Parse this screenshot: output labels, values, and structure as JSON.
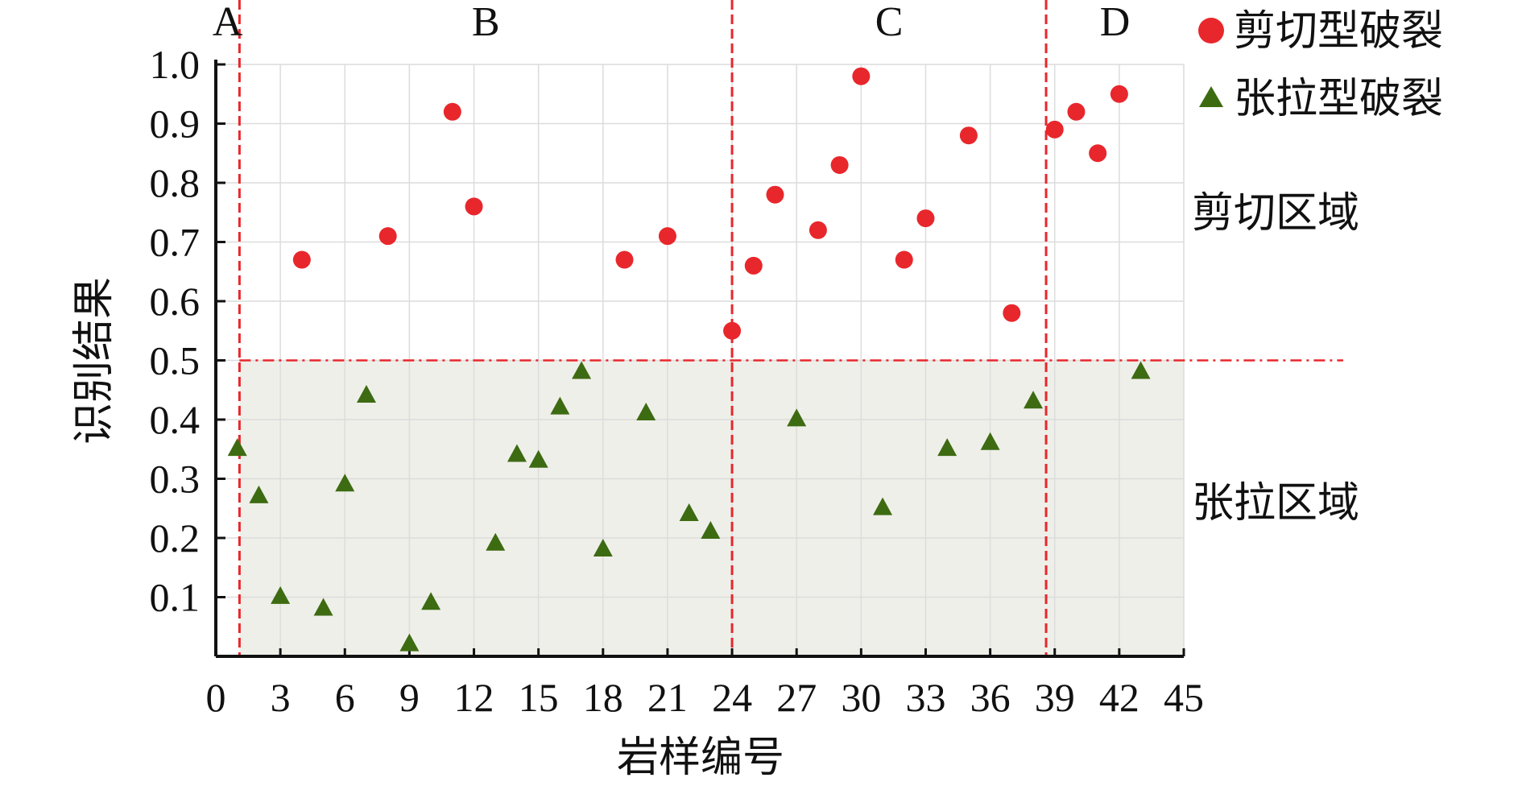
{
  "chart_data": {
    "type": "scatter",
    "title": "",
    "xlabel": "岩样编号",
    "ylabel": "识别结果",
    "xlim": [
      0,
      45
    ],
    "ylim": [
      0,
      1.0
    ],
    "xticks": [
      0,
      3,
      6,
      9,
      12,
      15,
      18,
      21,
      24,
      27,
      30,
      33,
      36,
      39,
      42,
      45
    ],
    "yticks": [
      0.1,
      0.2,
      0.3,
      0.4,
      0.5,
      0.6,
      0.7,
      0.8,
      0.9,
      1.0
    ],
    "ytick_labels": [
      "0.1",
      "0.2",
      "0.3",
      "0.4",
      "0.5",
      "0.6",
      "0.7",
      "0.8",
      "0.9",
      "1.0"
    ],
    "grid": true,
    "legend_position": "top-right",
    "threshold": 0.5,
    "threshold_color": "#e8272c",
    "lower_region_fill": "#efefe9",
    "regions": [
      {
        "label": "A",
        "x_start": 0,
        "x_end": 1.1
      },
      {
        "label": "B",
        "x_start": 1.1,
        "x_end": 24
      },
      {
        "label": "C",
        "x_start": 24,
        "x_end": 38.6
      },
      {
        "label": "D",
        "x_start": 38.6,
        "x_end": 45
      }
    ],
    "zone_labels": {
      "upper": "剪切区域",
      "lower": "张拉区域"
    },
    "series": [
      {
        "name": "剪切型破裂",
        "marker": "circle",
        "color": "#e8272c",
        "x": [
          4,
          8,
          11,
          12,
          19,
          21,
          24,
          25,
          26,
          28,
          29,
          30,
          32,
          33,
          35,
          37,
          39,
          40,
          41,
          42
        ],
        "y": [
          0.67,
          0.71,
          0.92,
          0.76,
          0.67,
          0.71,
          0.55,
          0.66,
          0.78,
          0.72,
          0.83,
          0.98,
          0.67,
          0.74,
          0.88,
          0.58,
          0.89,
          0.92,
          0.85,
          0.95
        ]
      },
      {
        "name": "张拉型破裂",
        "marker": "triangle",
        "color": "#3d6b12",
        "x": [
          1,
          2,
          3,
          5,
          6,
          7,
          9,
          10,
          13,
          14,
          15,
          16,
          17,
          18,
          20,
          22,
          23,
          27,
          31,
          34,
          36,
          38,
          43
        ],
        "y": [
          0.35,
          0.27,
          0.1,
          0.08,
          0.29,
          0.44,
          0.02,
          0.09,
          0.19,
          0.34,
          0.33,
          0.42,
          0.48,
          0.18,
          0.41,
          0.24,
          0.21,
          0.4,
          0.25,
          0.35,
          0.36,
          0.43,
          0.48
        ]
      }
    ]
  }
}
